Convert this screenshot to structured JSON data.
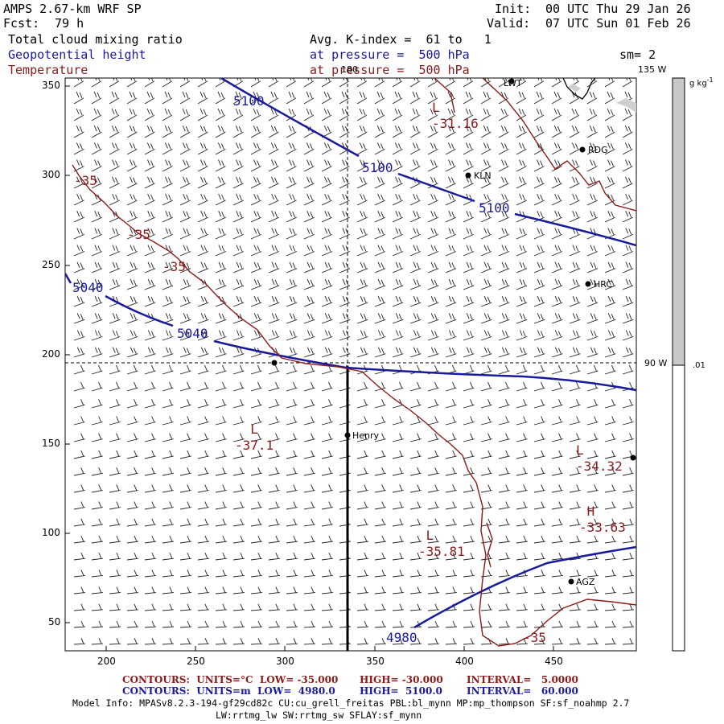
{
  "header": {
    "model_title": "AMPS 2.67-km WRF SP",
    "forecast_label": "Fcst:",
    "forecast_hours": "79 h",
    "init_label": "Init:",
    "init_time": "00 UTC Thu 29 Jan 26",
    "valid_label": "Valid:",
    "valid_time": "07 UTC Sun 01 Feb 26",
    "field1": "Total cloud mixing ratio",
    "field2": "Geopotential height",
    "field3": "Temperature",
    "avg_line": "Avg. K-index =  61 to   1",
    "pressure_line2": "at pressure =  500 hPa",
    "pressure_line3": "at pressure =  500 hPa",
    "smoothing": "sm= 2"
  },
  "colorbar": {
    "unit": "g kg",
    "unit_exp": "-1",
    "level_label": ".01"
  },
  "map": {
    "lon_labels": [
      "180",
      "135 W",
      "90 W"
    ],
    "y_ticks": [
      "350",
      "300",
      "250",
      "200",
      "150",
      "100",
      "50"
    ],
    "x_ticks": [
      "200",
      "250",
      "300",
      "350",
      "400",
      "450"
    ],
    "stations": [
      "RDG",
      "KLN",
      "HRC",
      "Henry",
      "AGZ",
      "LWT"
    ],
    "height_labels": [
      "5100",
      "5100",
      "5100",
      "5040",
      "5040",
      "4980"
    ],
    "temp_labels": [
      "-35",
      "-35",
      "-35",
      "-35"
    ],
    "extrema": [
      {
        "type": "L",
        "value": "-31.16"
      },
      {
        "type": "L",
        "value": "-37.1"
      },
      {
        "type": "L",
        "value": "-34.32"
      },
      {
        "type": "H",
        "value": "-33.63"
      },
      {
        "type": "L",
        "value": "-35.81"
      }
    ]
  },
  "footer": {
    "temp_contours": "CONTOURS:  UNITS=°C  LOW= -35.000",
    "temp_high": "HIGH= -30.000",
    "temp_interval": "INTERVAL=   5.0000",
    "height_contours": "CONTOURS:  UNITS=m  LOW=  4980.0",
    "height_high": "HIGH=  5100.0",
    "height_interval": "INTERVAL=   60.000",
    "model_info1": "Model Info: MPASv8.2.3-194-gf29cd82c CU:cu_grell_freitas PBL:bl_mynn MP:mp_thompson SF:sf_noahmp 2.7",
    "model_info2": "LW:rrtmg_lw SW:rrtmg_sw SFLAY:sf_mynn"
  },
  "colors": {
    "height": "#1a1a9c",
    "temperature": "#8b1a1a",
    "barbs": "#222222"
  }
}
